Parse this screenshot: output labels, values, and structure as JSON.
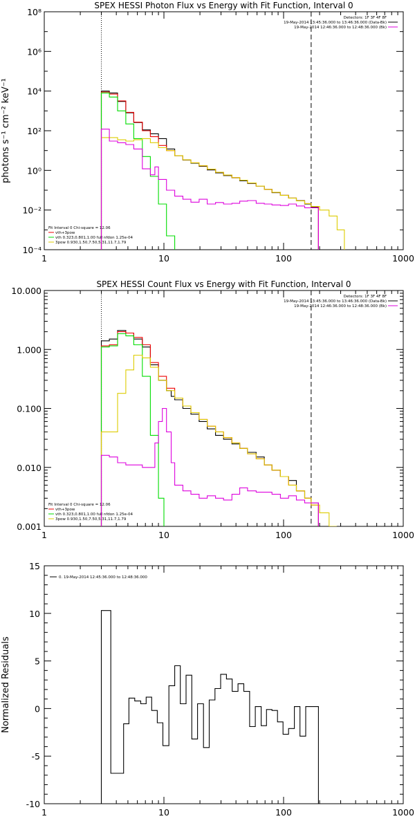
{
  "chart_data": [
    {
      "type": "line",
      "title": "SPEX HESSI Photon Flux vs Energy with Fit Function, Interval 0",
      "xlabel": "",
      "ylabel": "photons s⁻¹ cm⁻² keV⁻¹",
      "x_scale": "log",
      "y_scale": "log",
      "xlim": [
        1,
        1000
      ],
      "ylim": [
        0.0001,
        100000000
      ],
      "x_tick_labels": [
        "1",
        "10",
        "100",
        "1000"
      ],
      "y_tick_labels": [
        "10⁻⁴",
        "10⁻²",
        "10⁰",
        "10²",
        "10⁴",
        "10⁶",
        "10⁸"
      ],
      "vlines": [
        {
          "x": 3.0,
          "style": "dotted"
        },
        {
          "x": 170,
          "style": "dashed"
        }
      ],
      "legend_top_right": [
        {
          "text": "Detectors: 1F 3F 4F 8F",
          "color": "#000000"
        },
        {
          "text": "19-May-2014 13:45:36.000 to 13:46:36.000 (Data-Bk)",
          "color": "#000000"
        },
        {
          "text": "19-May-2014 12:46:36.000 to 12:48:36.000 (Bk)",
          "color": "#dd00dd"
        }
      ],
      "legend_bottom_left": [
        {
          "text": "Fit Interval 0   Chi-square = 12.06",
          "color": "#000000"
        },
        {
          "text": "vth+3pow",
          "color": "#ee0000"
        },
        {
          "text": "vth 0.323,0.801,1.00  full nfdon 1.25e-04",
          "color": "#00dd00"
        },
        {
          "text": "3pow 0.930,1.50,7.50,5.31,11.7,1.79",
          "color": "#ddcc00"
        }
      ],
      "series": [
        {
          "name": "",
          "color": "#000000",
          "x": [
            3.0,
            3.5,
            4.1,
            4.8,
            5.6,
            6.6,
            7.7,
            9.0,
            10.5,
            12.3,
            14.4,
            16.8,
            19.7,
            23.0,
            27,
            31.5,
            37,
            43,
            50,
            59,
            69,
            80,
            94,
            110,
            128,
            150,
            170
          ],
          "y": [
            10000,
            8000,
            3000,
            800,
            260,
            110,
            70,
            40,
            12,
            5.5,
            3.3,
            2.3,
            1.6,
            1.05,
            0.75,
            0.55,
            0.42,
            0.3,
            0.22,
            0.16,
            0.11,
            0.075,
            0.055,
            0.04,
            0.03,
            0.02,
            0.014
          ]
        },
        {
          "name": "vth+3pow",
          "color": "#ee0000",
          "x": [
            3.0,
            3.5,
            4.1,
            4.8,
            5.6,
            6.6,
            7.7,
            9.0,
            10.5,
            12.3,
            14.4,
            16.8,
            19.7,
            23.0,
            27,
            31.5,
            37,
            43,
            50,
            59,
            69,
            80,
            94,
            110,
            128,
            150,
            170
          ],
          "y": [
            9000,
            7000,
            3200,
            850,
            270,
            100,
            50,
            18,
            10,
            5.5,
            3.4,
            2.4,
            1.7,
            1.15,
            0.8,
            0.58,
            0.43,
            0.32,
            0.23,
            0.16,
            0.11,
            0.078,
            0.055,
            0.04,
            0.029,
            0.021,
            0.015
          ]
        },
        {
          "name": "vth",
          "color": "#00dd00",
          "x": [
            3.0,
            3.5,
            4.1,
            4.8,
            5.6,
            6.6,
            7.7,
            9.0,
            10.5,
            12.3
          ],
          "y": [
            8000,
            5000,
            1000,
            220,
            40,
            5,
            0.5,
            0.02,
            0.0005,
            3e-05
          ]
        },
        {
          "name": "3pow",
          "color": "#ddcc00",
          "x": [
            3.0,
            3.5,
            4.1,
            4.8,
            5.6,
            6.6,
            7.7,
            9.0,
            10.5,
            12.3,
            14.4,
            16.8,
            19.7,
            23.0,
            27,
            31.5,
            37,
            43,
            50,
            59,
            69,
            80,
            94,
            110,
            128,
            150,
            170,
            200,
            240,
            280
          ],
          "y": [
            45,
            45,
            35,
            30,
            35,
            40,
            25,
            14,
            10,
            5.5,
            3.4,
            2.4,
            1.7,
            1.15,
            0.8,
            0.58,
            0.43,
            0.32,
            0.23,
            0.16,
            0.11,
            0.078,
            0.055,
            0.04,
            0.029,
            0.021,
            0.015,
            0.01,
            0.005,
            0.001
          ]
        },
        {
          "name": "Bk",
          "color": "#dd00dd",
          "x": [
            3.0,
            3.5,
            4.1,
            4.8,
            5.6,
            6.6,
            7.7,
            8.4,
            9.0,
            10.5,
            12.3,
            14.4,
            16.8,
            19.7,
            23.0,
            27,
            31.5,
            37,
            43,
            50,
            59,
            69,
            80,
            94,
            110,
            128,
            150,
            170
          ],
          "y": [
            120,
            30,
            25,
            20,
            12,
            1.2,
            0.6,
            1.5,
            0.35,
            0.1,
            0.05,
            0.035,
            0.025,
            0.035,
            0.02,
            0.024,
            0.02,
            0.022,
            0.028,
            0.03,
            0.022,
            0.02,
            0.018,
            0.017,
            0.02,
            0.016,
            0.013,
            0.013
          ]
        }
      ]
    },
    {
      "type": "line",
      "title": "SPEX HESSI Count Flux vs Energy with Fit Function, Interval 0",
      "xlabel": "",
      "ylabel": "",
      "x_scale": "log",
      "y_scale": "log",
      "xlim": [
        1,
        1000
      ],
      "ylim": [
        0.001,
        10
      ],
      "x_tick_labels": [
        "1",
        "10",
        "100",
        "1000"
      ],
      "y_tick_labels": [
        "0.001",
        "0.010",
        "0.100",
        "1.000",
        "10.000"
      ],
      "vlines": [
        {
          "x": 3.0,
          "style": "dotted"
        },
        {
          "x": 170,
          "style": "dashed"
        }
      ],
      "legend_top_right": [
        {
          "text": "Detectors: 1F 3F 4F 8F",
          "color": "#000000"
        },
        {
          "text": "19-May-2014 13:45:36.000 to 13:46:36.000 (Data-Bk)",
          "color": "#000000"
        },
        {
          "text": "19-May-2014 12:46:36.000 to 12:48:36.000 (Bk)",
          "color": "#dd00dd"
        }
      ],
      "legend_bottom_left": [
        {
          "text": "Fit Interval 0   Chi-square = 12.06",
          "color": "#000000"
        },
        {
          "text": "vth+3pow",
          "color": "#ee0000"
        },
        {
          "text": "vth 0.323,0.801,1.00  full nfdon 1.25e-04",
          "color": "#00dd00"
        },
        {
          "text": "3pow 0.930,1.50,7.50,5.31,11.7,1.79",
          "color": "#ddcc00"
        }
      ],
      "series": [
        {
          "name": "",
          "color": "#000000",
          "x": [
            3.0,
            3.5,
            4.1,
            4.8,
            5.6,
            6.6,
            7.7,
            9.0,
            10.5,
            11.5,
            12.3,
            14.4,
            16.8,
            19.7,
            23.0,
            27,
            31.5,
            37,
            43,
            50,
            59,
            69,
            80,
            94,
            110,
            128,
            150,
            170
          ],
          "y": [
            1.4,
            1.5,
            2.1,
            1.9,
            1.5,
            1.1,
            0.55,
            0.3,
            0.2,
            0.16,
            0.14,
            0.1,
            0.08,
            0.06,
            0.045,
            0.035,
            0.03,
            0.025,
            0.021,
            0.018,
            0.015,
            0.011,
            0.009,
            0.007,
            0.006,
            0.004,
            0.003,
            0.0025
          ]
        },
        {
          "name": "vth+3pow",
          "color": "#ee0000",
          "x": [
            3.0,
            3.5,
            4.1,
            4.8,
            5.6,
            6.6,
            7.7,
            9.0,
            10.5,
            12.3,
            14.4,
            16.8,
            19.7,
            23.0,
            27,
            31.5,
            37,
            43,
            50,
            59,
            69,
            80,
            94,
            110,
            128,
            150,
            170
          ],
          "y": [
            1.15,
            1.2,
            2.0,
            1.9,
            1.6,
            1.2,
            0.6,
            0.35,
            0.22,
            0.15,
            0.11,
            0.085,
            0.065,
            0.05,
            0.04,
            0.032,
            0.026,
            0.021,
            0.017,
            0.014,
            0.011,
            0.009,
            0.007,
            0.005,
            0.004,
            0.003,
            0.0023
          ]
        },
        {
          "name": "vth",
          "color": "#00dd00",
          "x": [
            3.0,
            3.5,
            4.1,
            4.8,
            5.6,
            6.6,
            7.7,
            9.0,
            10.0
          ],
          "y": [
            1.1,
            1.15,
            1.85,
            1.7,
            1.2,
            0.35,
            0.035,
            0.003,
            0.0005
          ]
        },
        {
          "name": "3pow",
          "color": "#ddcc00",
          "x": [
            3.0,
            3.5,
            4.1,
            4.8,
            5.6,
            6.6,
            7.7,
            9.0,
            10.5,
            12.3,
            14.4,
            16.8,
            19.7,
            23.0,
            27,
            31.5,
            37,
            43,
            50,
            59,
            69,
            80,
            94,
            110,
            128,
            150,
            170,
            200,
            240
          ],
          "y": [
            0.04,
            0.04,
            0.18,
            0.45,
            0.8,
            0.72,
            0.5,
            0.3,
            0.2,
            0.15,
            0.11,
            0.085,
            0.065,
            0.05,
            0.04,
            0.032,
            0.026,
            0.021,
            0.017,
            0.014,
            0.011,
            0.009,
            0.007,
            0.005,
            0.004,
            0.003,
            0.0023,
            0.0017,
            0.001
          ]
        },
        {
          "name": "Bk",
          "color": "#dd00dd",
          "x": [
            3.0,
            3.5,
            4.1,
            4.8,
            5.6,
            6.6,
            7.7,
            8.4,
            9.0,
            9.7,
            10.5,
            11.5,
            12.3,
            14.4,
            16.8,
            19.7,
            23.0,
            27,
            31.5,
            37,
            43,
            50,
            59,
            69,
            80,
            94,
            110,
            128,
            150,
            170
          ],
          "y": [
            0.016,
            0.015,
            0.012,
            0.011,
            0.011,
            0.01,
            0.01,
            0.026,
            0.06,
            0.1,
            0.04,
            0.012,
            0.005,
            0.004,
            0.0035,
            0.003,
            0.0033,
            0.003,
            0.0028,
            0.0035,
            0.0045,
            0.004,
            0.0038,
            0.0038,
            0.0035,
            0.003,
            0.0033,
            0.0028,
            0.0025,
            0.0025
          ]
        }
      ]
    },
    {
      "type": "line",
      "title": "",
      "xlabel": "",
      "ylabel": "Normalized Residuals",
      "x_scale": "log",
      "y_scale": "linear",
      "xlim": [
        1,
        1000
      ],
      "ylim": [
        -10,
        15
      ],
      "x_tick_labels": [
        "1",
        "10",
        "100",
        "1000"
      ],
      "y_tick_labels": [
        "-10",
        "-5",
        "0",
        "5",
        "10",
        "15"
      ],
      "legend_top_left": [
        {
          "text": "0. 19-May-2014 12:45:36.000 to 12:48:36.000",
          "color": "#000000"
        }
      ],
      "series": [
        {
          "name": "",
          "color": "#000000",
          "x": [
            3.0,
            3.6,
            4.1,
            4.6,
            5.1,
            5.7,
            6.4,
            7.1,
            7.9,
            8.8,
            9.8,
            11.0,
            12.3,
            13.7,
            15.3,
            17.1,
            19.1,
            21.4,
            23.9,
            26.7,
            29.8,
            33.3,
            37.2,
            41.6,
            46.5,
            52,
            58,
            65,
            72,
            80,
            89,
            99,
            110,
            123,
            137,
            153,
            170
          ],
          "y": [
            10.3,
            -6.8,
            -6.8,
            -1.6,
            1.1,
            0.8,
            0.5,
            1.2,
            -0.2,
            -1.5,
            -3.9,
            2.4,
            4.5,
            0.5,
            3.5,
            -3.2,
            0.5,
            -4.1,
            0.9,
            2.1,
            3.6,
            3.1,
            1.8,
            2.6,
            1.8,
            -1.9,
            0.2,
            -1.8,
            -0.1,
            -0.2,
            -1.4,
            -2.7,
            -2.1,
            0.2,
            -2.9,
            0.2,
            0.2
          ]
        }
      ]
    }
  ]
}
